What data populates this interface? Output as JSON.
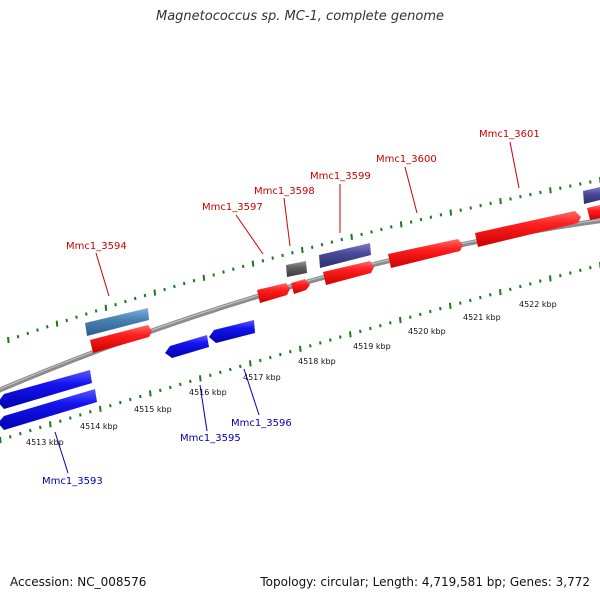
{
  "title": "Magnetococcus sp. MC-1, complete genome",
  "footer": {
    "accession": "Accession: NC_008576",
    "topology": "Topology: circular; Length: 4,719,581 bp; Genes: 3,772"
  },
  "colors": {
    "forward_gene": "#ff1f1f",
    "reverse_gene": "#1515f0",
    "forward_label": "#cc0000",
    "reverse_label": "#0000aa",
    "backbone": "#8c8c8c",
    "tick": "#1a7a1a",
    "other_feature_purple": "#4a4a9a",
    "other_feature_steel": "#4a82b4",
    "other_feature_gray": "#606060"
  },
  "scale_labels": [
    {
      "label": "4513 kbp"
    },
    {
      "label": "4514 kbp"
    },
    {
      "label": "4515 kbp"
    },
    {
      "label": "4516 kbp"
    },
    {
      "label": "4517 kbp"
    },
    {
      "label": "4518 kbp"
    },
    {
      "label": "4519 kbp"
    },
    {
      "label": "4520 kbp"
    },
    {
      "label": "4521 kbp"
    },
    {
      "label": "4522 kbp"
    }
  ],
  "gene_labels": [
    {
      "name": "Mmc1_3593",
      "strand": "reverse"
    },
    {
      "name": "Mmc1_3594",
      "strand": "forward"
    },
    {
      "name": "Mmc1_3595",
      "strand": "reverse"
    },
    {
      "name": "Mmc1_3596",
      "strand": "reverse"
    },
    {
      "name": "Mmc1_3597",
      "strand": "forward"
    },
    {
      "name": "Mmc1_3598",
      "strand": "forward"
    },
    {
      "name": "Mmc1_3599",
      "strand": "forward"
    },
    {
      "name": "Mmc1_3600",
      "strand": "forward"
    },
    {
      "name": "Mmc1_3601",
      "strand": "forward"
    }
  ]
}
